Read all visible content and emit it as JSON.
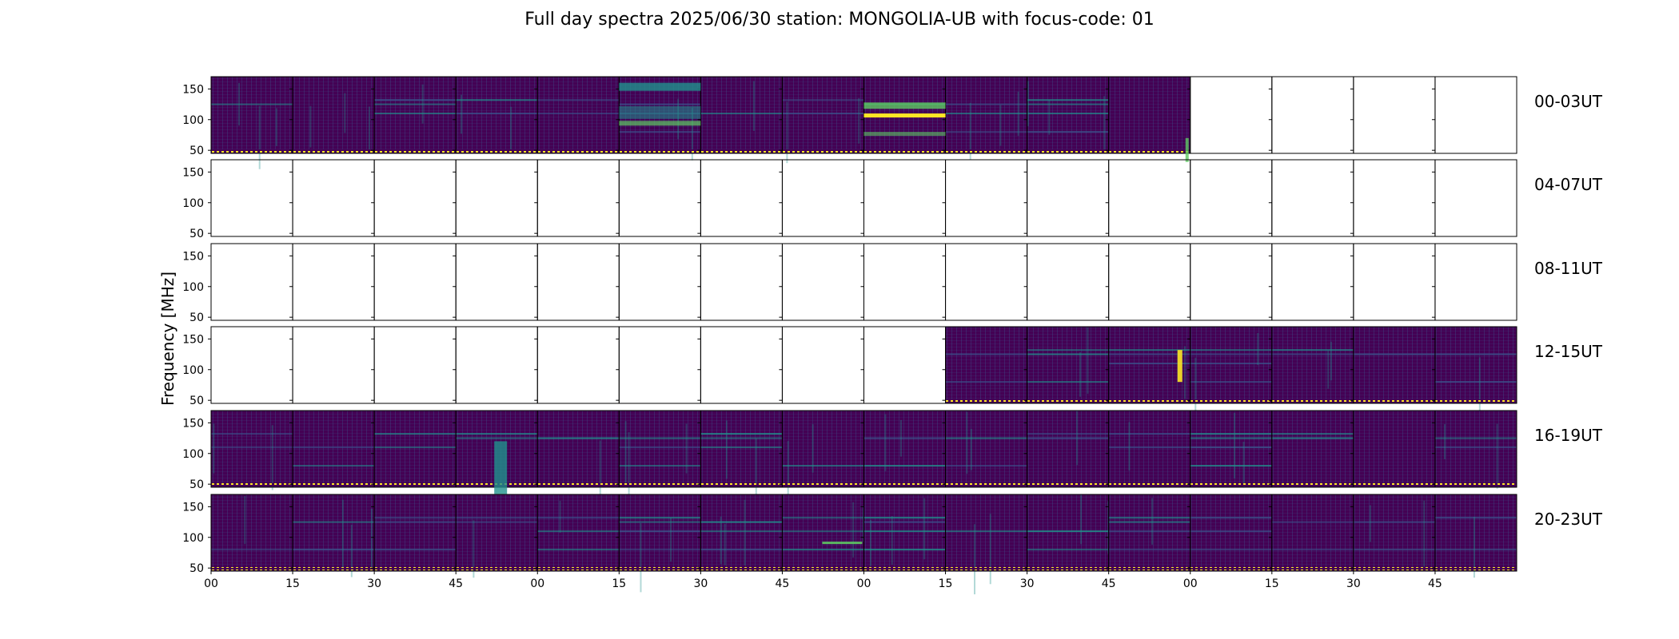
{
  "chart_data": {
    "type": "heatmap",
    "title": "Full day spectra 2025/06/30 station: MONGOLIA-UB with focus-code: 01",
    "ylabel": "Frequency [MHz]",
    "yticks": [
      50,
      100,
      150
    ],
    "ylim": [
      45,
      170
    ],
    "xtick_labels": [
      "00",
      "15",
      "30",
      "45",
      "00",
      "15",
      "30",
      "45",
      "00",
      "15",
      "30",
      "45",
      "00",
      "15",
      "30",
      "45"
    ],
    "colormap": [
      "#440154",
      "#3b528b",
      "#21918c",
      "#5ec962",
      "#fde725"
    ],
    "row_labels": [
      "00-03UT",
      "04-07UT",
      "08-11UT",
      "12-15UT",
      "16-19UT",
      "20-23UT"
    ],
    "panels_per_row": 16,
    "panel_minutes": 15,
    "coverage": [
      {
        "row": "00-03UT",
        "data_panels": [
          0,
          1,
          2,
          3,
          4,
          5,
          6,
          7,
          8,
          9,
          10,
          11
        ]
      },
      {
        "row": "04-07UT",
        "data_panels": []
      },
      {
        "row": "08-11UT",
        "data_panels": []
      },
      {
        "row": "12-15UT",
        "data_panels": [
          9,
          10,
          11,
          12,
          13,
          14,
          15
        ]
      },
      {
        "row": "16-19UT",
        "data_panels": [
          0,
          1,
          2,
          3,
          4,
          5,
          6,
          7,
          8,
          9,
          10,
          11,
          12,
          13,
          14,
          15
        ]
      },
      {
        "row": "20-23UT",
        "data_panels": [
          0,
          1,
          2,
          3,
          4,
          5,
          6,
          7,
          8,
          9,
          10,
          11,
          12,
          13,
          14,
          15
        ]
      }
    ]
  }
}
